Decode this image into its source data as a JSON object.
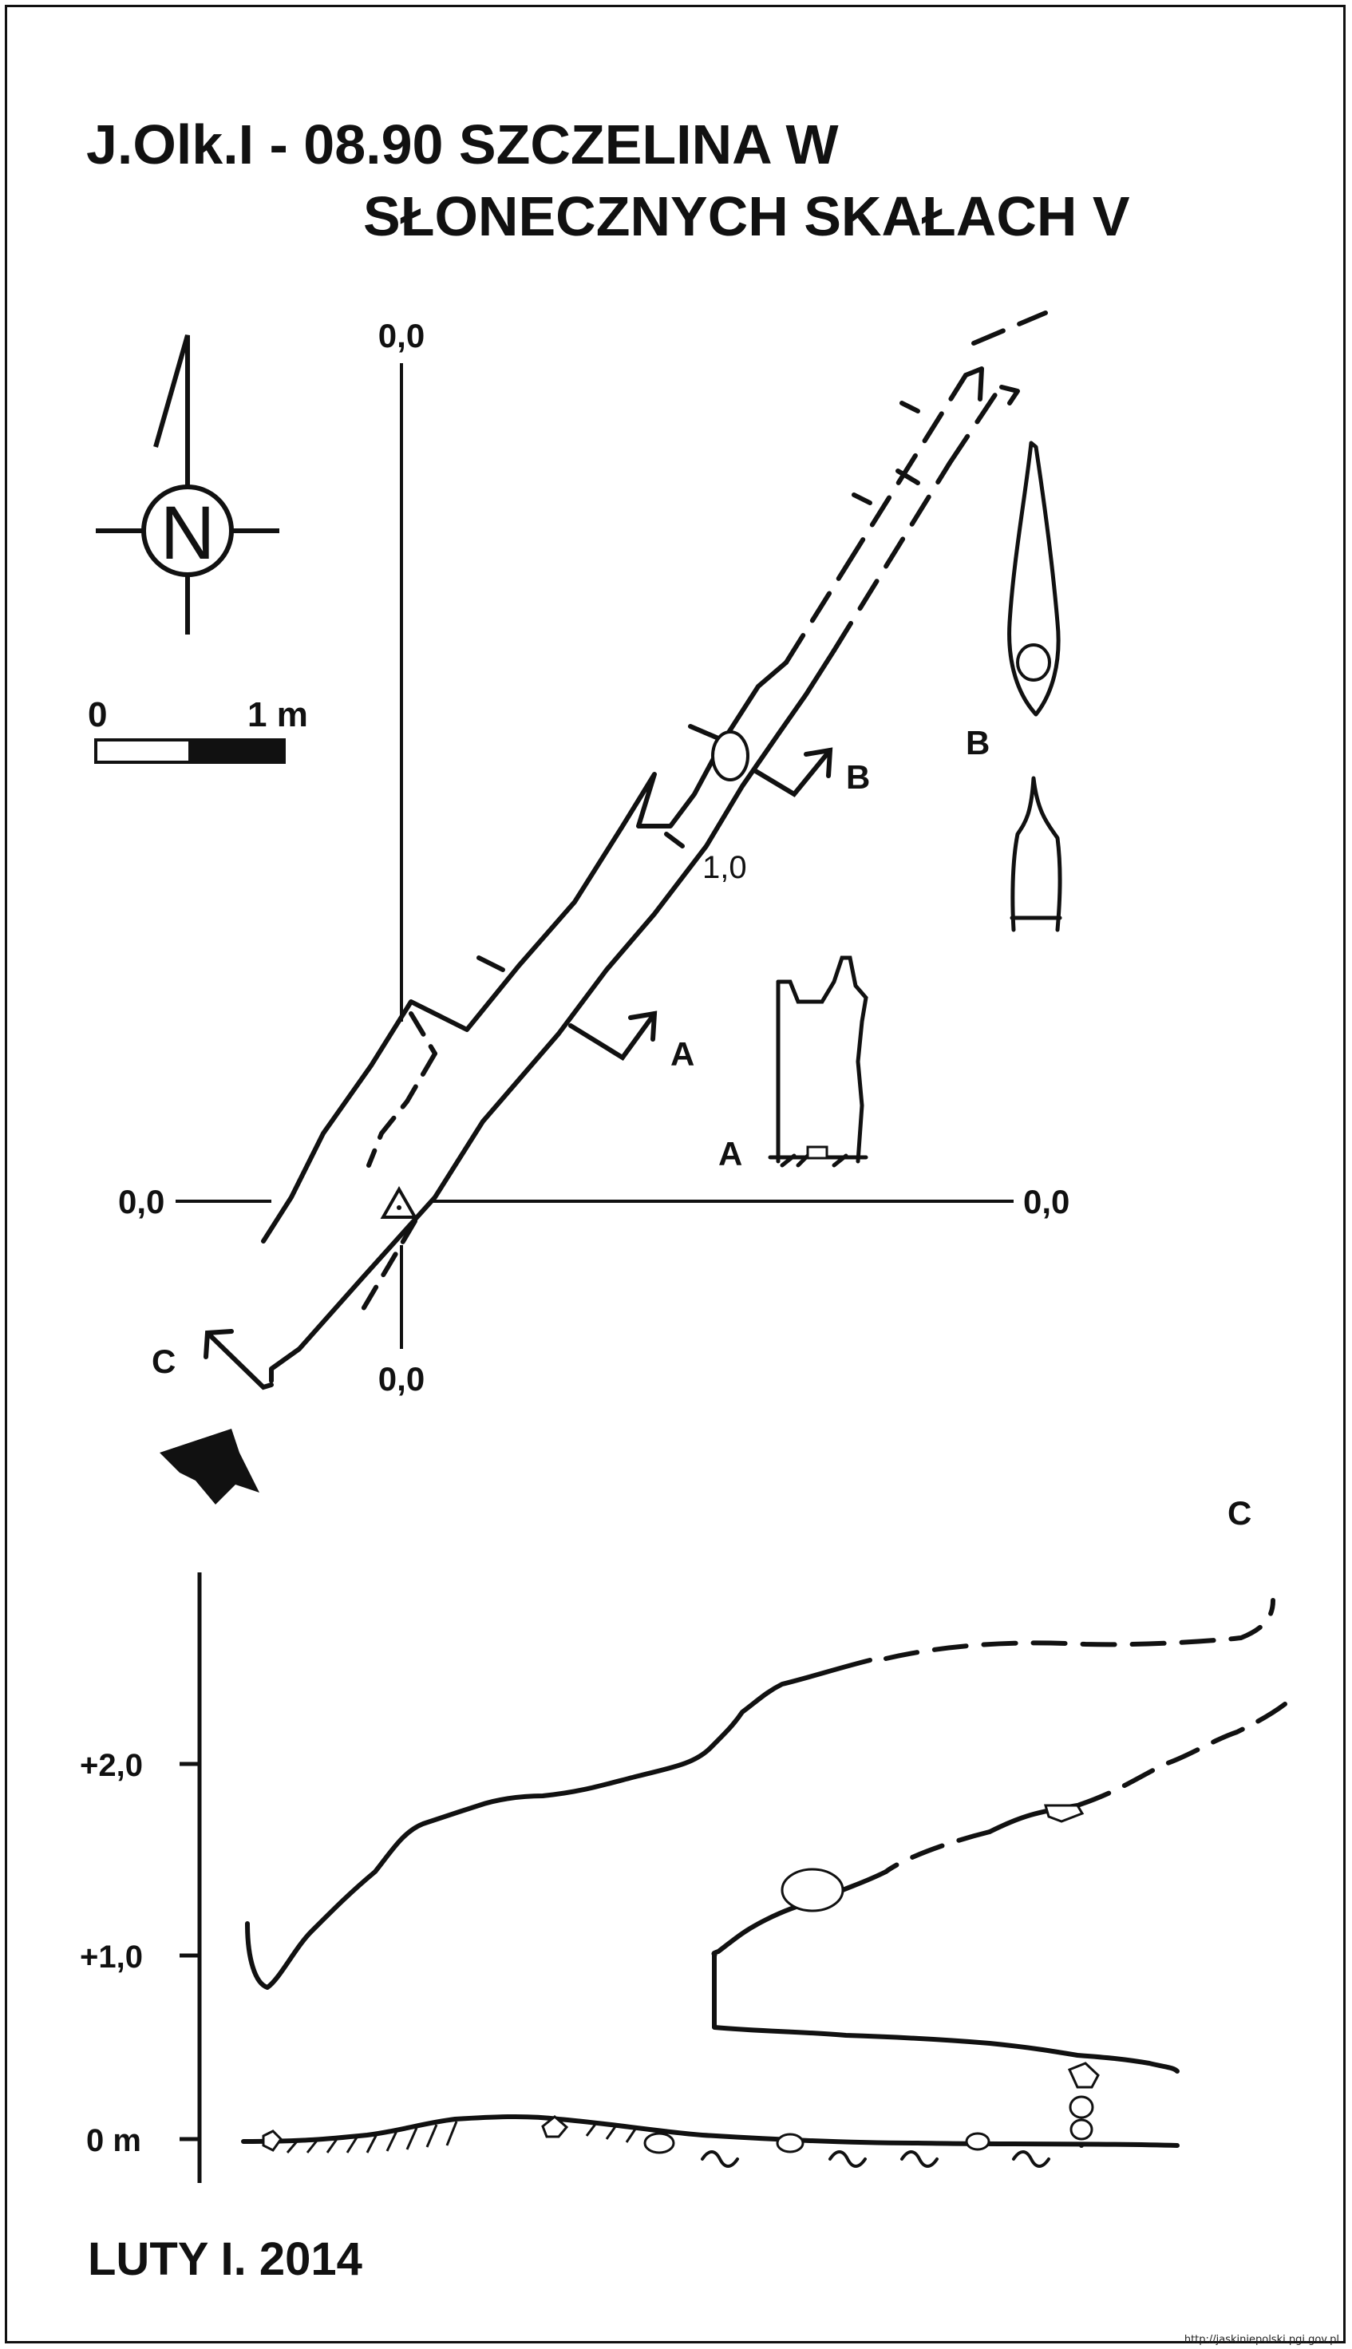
{
  "title": {
    "line1": "J.Olk.I - 08.90  SZCZELINA W",
    "line2": "SŁONECZNYCH SKAŁACH V"
  },
  "compass": {
    "icon": "north-arrow-icon",
    "letter": "N"
  },
  "scale_bar": {
    "start_label": "0",
    "end_label": "1 m"
  },
  "plan": {
    "axis_labels": {
      "top": "0,0",
      "left": "0,0",
      "right": "0,0",
      "bottom": "0,0"
    },
    "depth_label": "1,0",
    "section_markers": {
      "a": "A",
      "b": "B",
      "c": "C"
    },
    "entrance_icon": "entrance-arrow-icon",
    "station_icon": "survey-station-triangle-icon"
  },
  "cross_sections": {
    "a_label": "A",
    "b_label": "B"
  },
  "profile": {
    "label": "C",
    "y_ticks": [
      "+2,0",
      "+1,0",
      "0 m"
    ]
  },
  "footer": {
    "author_date": "LUTY I. 2014",
    "credit": "http://jaskiniepolski.pgi.gov.pl"
  },
  "colors": {
    "ink": "#111111",
    "paper": "#ffffff"
  }
}
